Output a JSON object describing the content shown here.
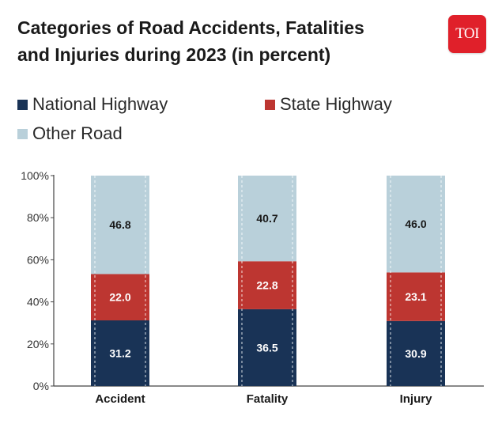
{
  "header": {
    "title_line1": "Categories of Road Accidents, Fatalities",
    "title_line2": "and Injuries during 2023 (in percent)",
    "logo_text": "TOI"
  },
  "colors": {
    "national_highway": "#193356",
    "state_highway": "#bd3631",
    "other_road": "#b9d0da"
  },
  "chart_data": {
    "type": "bar",
    "stacked": true,
    "title": "Categories of Road Accidents, Fatalities and Injuries during 2023 (in percent)",
    "categories": [
      "Accident",
      "Fatality",
      "Injury"
    ],
    "series": [
      {
        "name": "National Highway",
        "values": [
          31.2,
          36.5,
          30.9
        ],
        "value_labels": [
          "31.2",
          "36.5",
          "30.9"
        ]
      },
      {
        "name": "State Highway",
        "values": [
          22.0,
          22.8,
          23.1
        ],
        "value_labels": [
          "22.0",
          "22.8",
          "23.1"
        ]
      },
      {
        "name": "Other Road",
        "values": [
          46.8,
          40.7,
          46.0
        ],
        "value_labels": [
          "46.8",
          "40.7",
          "46.0"
        ]
      }
    ],
    "ylim": [
      0,
      100
    ],
    "yticks": [
      "0%",
      "20%",
      "40%",
      "60%",
      "80%",
      "100%"
    ],
    "xlabel": "",
    "ylabel": "",
    "legend_position": "top-left"
  }
}
